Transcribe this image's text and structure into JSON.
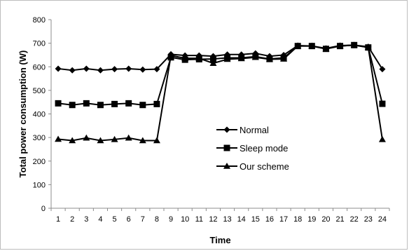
{
  "chart_data": {
    "type": "line",
    "xlabel": "Time",
    "ylabel": "Total power consumption (W)",
    "x": [
      1,
      2,
      3,
      4,
      5,
      6,
      7,
      8,
      9,
      10,
      11,
      12,
      13,
      14,
      15,
      16,
      17,
      18,
      19,
      20,
      21,
      22,
      23,
      24
    ],
    "ylim": [
      0,
      800
    ],
    "yticks": [
      0,
      100,
      200,
      300,
      400,
      500,
      600,
      700,
      800
    ],
    "grid": false,
    "legend_position": "center-right",
    "series": [
      {
        "name": "Normal",
        "marker": "diamond",
        "values": [
          592,
          585,
          592,
          585,
          590,
          592,
          588,
          590,
          653,
          648,
          648,
          645,
          652,
          652,
          657,
          645,
          650,
          690,
          688,
          678,
          690,
          692,
          685,
          590
        ]
      },
      {
        "name": "Sleep mode",
        "marker": "square",
        "values": [
          445,
          438,
          445,
          438,
          442,
          445,
          438,
          442,
          640,
          630,
          632,
          633,
          638,
          638,
          643,
          633,
          638,
          688,
          688,
          676,
          688,
          692,
          682,
          443
        ]
      },
      {
        "name": "Our scheme",
        "marker": "triangle",
        "values": [
          293,
          287,
          298,
          287,
          292,
          298,
          287,
          287,
          648,
          636,
          636,
          615,
          632,
          635,
          640,
          632,
          633,
          688,
          688,
          676,
          688,
          692,
          682,
          292
        ]
      }
    ]
  }
}
